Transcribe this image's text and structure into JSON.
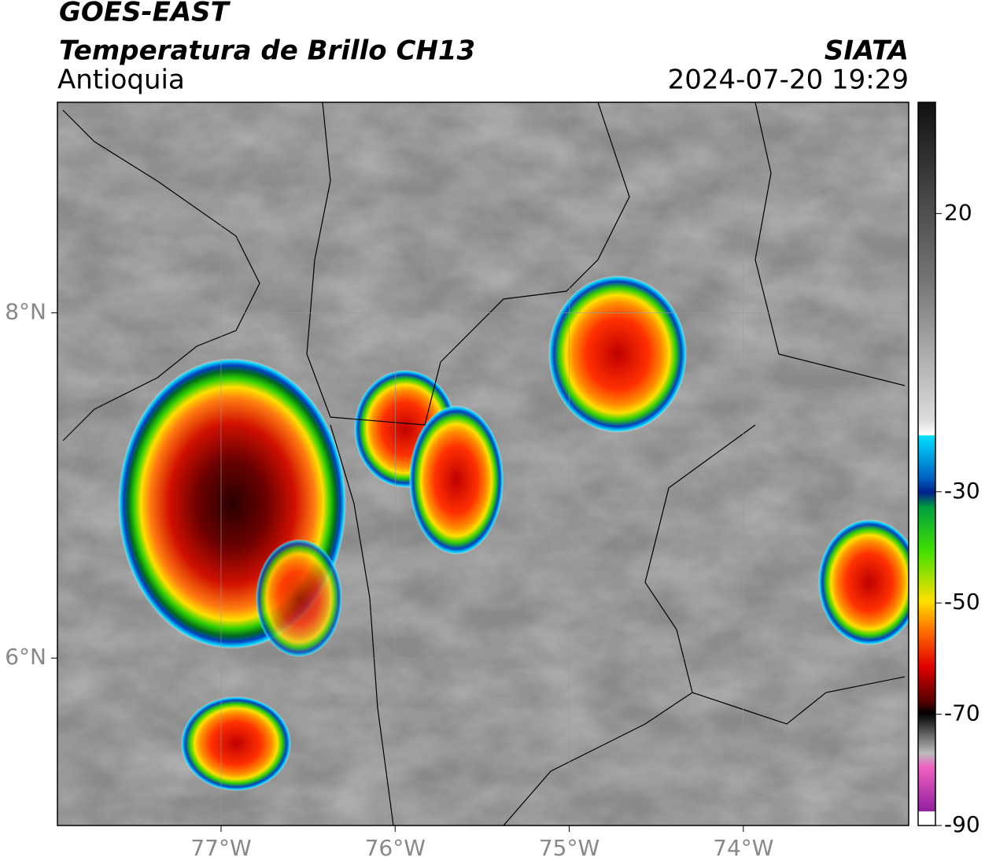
{
  "header": {
    "satellite": "GOES-EAST",
    "product": "Temperatura de Brillo CH13",
    "region": "Antioquia",
    "agency": "SIATA",
    "datetime": "2024-07-20 19:29"
  },
  "map": {
    "xlim": [
      -77.94,
      -73.05
    ],
    "ylim": [
      5.03,
      9.22
    ],
    "xticks": [
      {
        "value": -77,
        "label": "77°W"
      },
      {
        "value": -76,
        "label": "76°W"
      },
      {
        "value": -75,
        "label": "75°W"
      },
      {
        "value": -74,
        "label": "74°W"
      }
    ],
    "yticks": [
      {
        "value": 6,
        "label": "6°N"
      },
      {
        "value": 8,
        "label": "8°N"
      }
    ],
    "grid": true
  },
  "colorbar": {
    "lim": [
      -90,
      40
    ],
    "ticks": [
      20,
      -30,
      -50,
      -70,
      -90
    ]
  }
}
